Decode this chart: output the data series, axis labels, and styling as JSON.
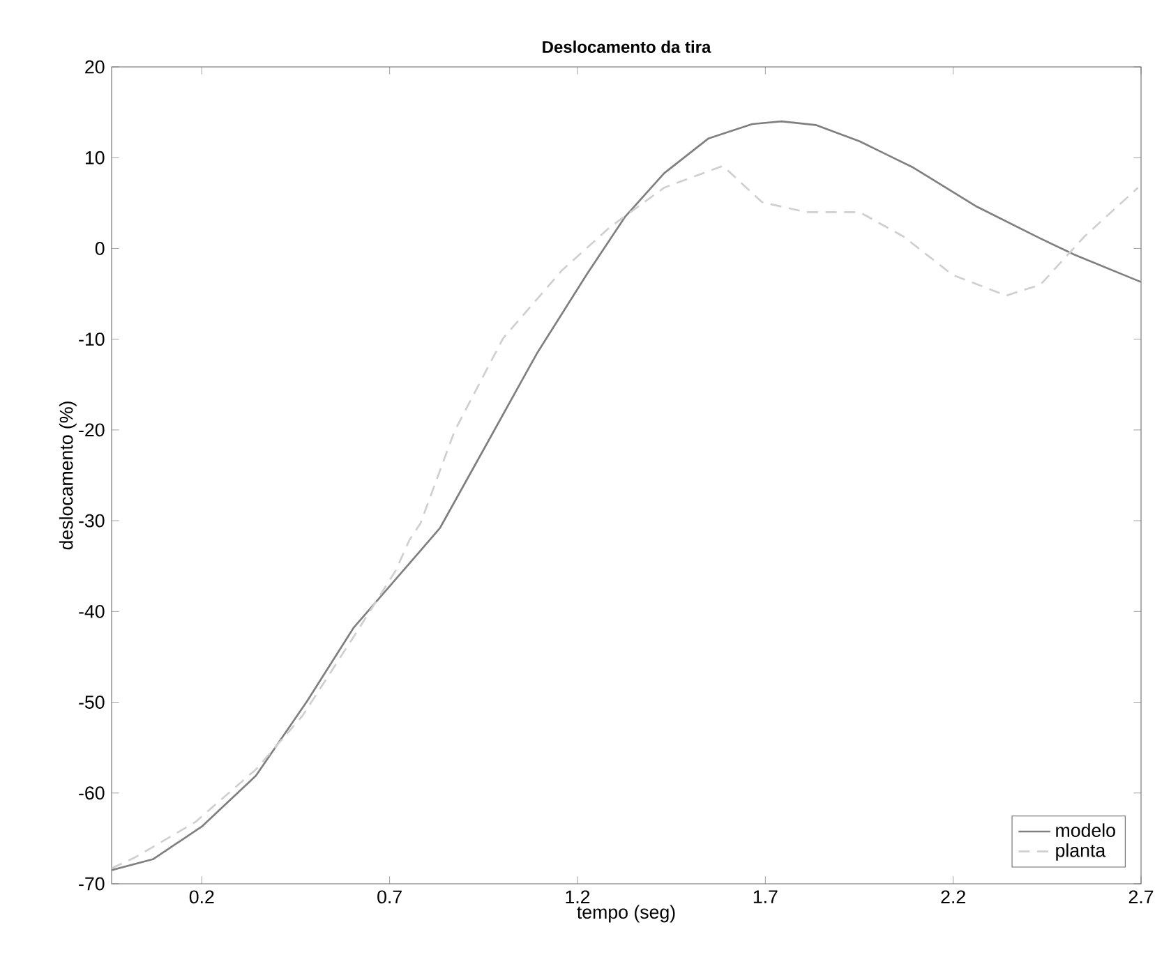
{
  "chart_data": {
    "type": "line",
    "title": "Deslocamento da tira",
    "xlabel": "tempo (seg)",
    "ylabel": "deslocamento (%)",
    "xlim": [
      -0.04,
      2.7
    ],
    "ylim": [
      -70,
      20
    ],
    "xticks": [
      0.2,
      0.7,
      1.2,
      1.7,
      2.2,
      2.7
    ],
    "yticks": [
      -70,
      -60,
      -50,
      -40,
      -30,
      -20,
      -10,
      0,
      10,
      20
    ],
    "legend": "bottom right",
    "grid": false,
    "series": [
      {
        "name": "modelo",
        "color": "#7f7f7f",
        "line_style": "solid",
        "x": [
          -0.04,
          0.07,
          0.2,
          0.344,
          0.48,
          0.604,
          0.778,
          0.834,
          0.873,
          0.963,
          1.093,
          1.224,
          1.327,
          1.431,
          1.548,
          1.665,
          1.743,
          1.834,
          1.951,
          2.094,
          2.263,
          2.432,
          2.523,
          2.7
        ],
        "values": [
          -68.5,
          -67.3,
          -63.7,
          -58.1,
          -49.9,
          -41.8,
          -33.5,
          -30.8,
          -27.9,
          -21.2,
          -11.5,
          -2.9,
          3.5,
          8.3,
          12.1,
          13.7,
          14.0,
          13.6,
          11.8,
          8.9,
          4.6,
          1.1,
          -0.7,
          -3.7
        ]
      },
      {
        "name": "planta",
        "color": "#cfcfcf",
        "line_style": "dashed",
        "x": [
          -0.04,
          0.022,
          0.183,
          0.344,
          0.468,
          0.604,
          0.716,
          0.753,
          0.782,
          0.873,
          1.002,
          1.159,
          1.288,
          1.431,
          1.587,
          1.691,
          1.808,
          1.951,
          2.068,
          2.198,
          2.341,
          2.432,
          2.549,
          2.692
        ],
        "values": [
          -68.3,
          -67.1,
          -63.2,
          -57.4,
          -51.5,
          -42.8,
          -35.5,
          -32.1,
          -30.3,
          -20.1,
          -9.9,
          -2.4,
          2.4,
          6.7,
          9.1,
          5.1,
          4.0,
          4.0,
          1.3,
          -2.9,
          -5.2,
          -4.0,
          1.3,
          6.7
        ]
      }
    ]
  }
}
